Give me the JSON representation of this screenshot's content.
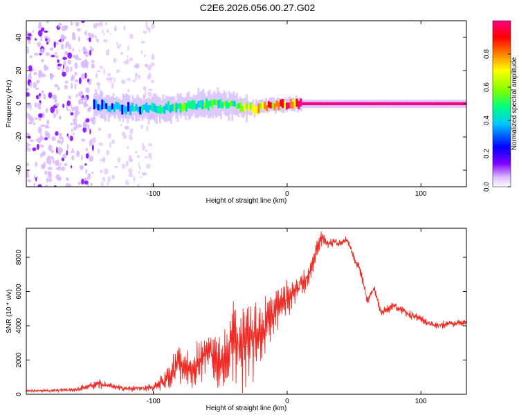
{
  "figure_title": "C2E6.2026.056.00.27.G02",
  "chart_data": [
    {
      "type": "heatmap",
      "title": "",
      "xlabel": "Height of straight line (km)",
      "ylabel": "Frequency (Hz)",
      "xlim": [
        -195,
        134
      ],
      "ylim": [
        -50,
        50
      ],
      "x_ticks": [
        -100,
        0,
        100
      ],
      "y_ticks": [
        -40,
        -20,
        0,
        20,
        40
      ],
      "x_tick_labels": [
        "-100",
        "0",
        "100"
      ],
      "y_tick_labels": [
        "-40",
        "-20",
        "0",
        "20",
        "40"
      ],
      "colorbar": {
        "label": "Normalized spectral amplitude",
        "range": [
          0.0,
          1.0
        ],
        "ticks": [
          "0.0",
          "0.2",
          "0.4",
          "0.6",
          "0.8"
        ],
        "tick_values": [
          0.0,
          0.2,
          0.4,
          0.6,
          0.8
        ],
        "colors": [
          "#ffffff",
          "#d8b8ff",
          "#8000ff",
          "#0000ff",
          "#00c8ff",
          "#00ff80",
          "#80ff00",
          "#ffff00",
          "#ff8000",
          "#ff0000",
          "#ff0080"
        ]
      },
      "signal_track": [
        {
          "x": -145,
          "freq": -1,
          "amp": 0.35
        },
        {
          "x": -120,
          "freq": -3,
          "amp": 0.42
        },
        {
          "x": -100,
          "freq": -3,
          "amp": 0.45
        },
        {
          "x": -80,
          "freq": -2,
          "amp": 0.55
        },
        {
          "x": -60,
          "freq": 0,
          "amp": 0.5
        },
        {
          "x": -40,
          "freq": -1,
          "amp": 0.55
        },
        {
          "x": -25,
          "freq": -3,
          "amp": 0.75
        },
        {
          "x": -10,
          "freq": -1,
          "amp": 0.85
        },
        {
          "x": 0,
          "freq": 0,
          "amp": 0.95
        },
        {
          "x": 20,
          "freq": 0,
          "amp": 1.0
        },
        {
          "x": 134,
          "freq": 0,
          "amp": 1.0
        }
      ],
      "noise_region_x": [
        -195,
        -100
      ]
    },
    {
      "type": "line",
      "title": "",
      "xlabel": "Height of straight line (km)",
      "ylabel": "SNR (10 * v/v)",
      "xlim": [
        -195,
        134
      ],
      "ylim": [
        0,
        9700
      ],
      "x_ticks": [
        -100,
        0,
        100
      ],
      "y_ticks": [
        0,
        2000,
        4000,
        6000,
        8000
      ],
      "x_tick_labels": [
        "-100",
        "0",
        "100"
      ],
      "y_tick_labels": [
        "0",
        "2000",
        "4000",
        "6000",
        "8000"
      ],
      "series": [
        {
          "name": "SNR",
          "color": "#ee2a24",
          "x": [
            -195,
            -160,
            -140,
            -120,
            -100,
            -90,
            -80,
            -70,
            -60,
            -50,
            -40,
            -30,
            -25,
            -20,
            -15,
            -10,
            -5,
            0,
            5,
            10,
            15,
            20,
            25,
            30,
            35,
            40,
            45,
            50,
            55,
            60,
            65,
            70,
            75,
            80,
            90,
            100,
            110,
            120,
            134
          ],
          "values": [
            200,
            250,
            600,
            300,
            400,
            900,
            1800,
            1500,
            2400,
            1800,
            3000,
            2800,
            3300,
            3600,
            4200,
            4800,
            5300,
            5600,
            6000,
            6400,
            6900,
            7700,
            9200,
            8800,
            8900,
            8800,
            9000,
            8000,
            7200,
            5400,
            6200,
            4800,
            5000,
            5200,
            4700,
            4400,
            4000,
            4100,
            4200
          ],
          "jitter": [
            60,
            120,
            250,
            150,
            250,
            800,
            1200,
            1100,
            1500,
            1600,
            2200,
            2800,
            2400,
            2000,
            1500,
            1300,
            1100,
            1000,
            900,
            800,
            800,
            600,
            500,
            300,
            250,
            250,
            250,
            300,
            300,
            300,
            300,
            250,
            250,
            250,
            250,
            220,
            220,
            220,
            220
          ]
        }
      ]
    }
  ]
}
